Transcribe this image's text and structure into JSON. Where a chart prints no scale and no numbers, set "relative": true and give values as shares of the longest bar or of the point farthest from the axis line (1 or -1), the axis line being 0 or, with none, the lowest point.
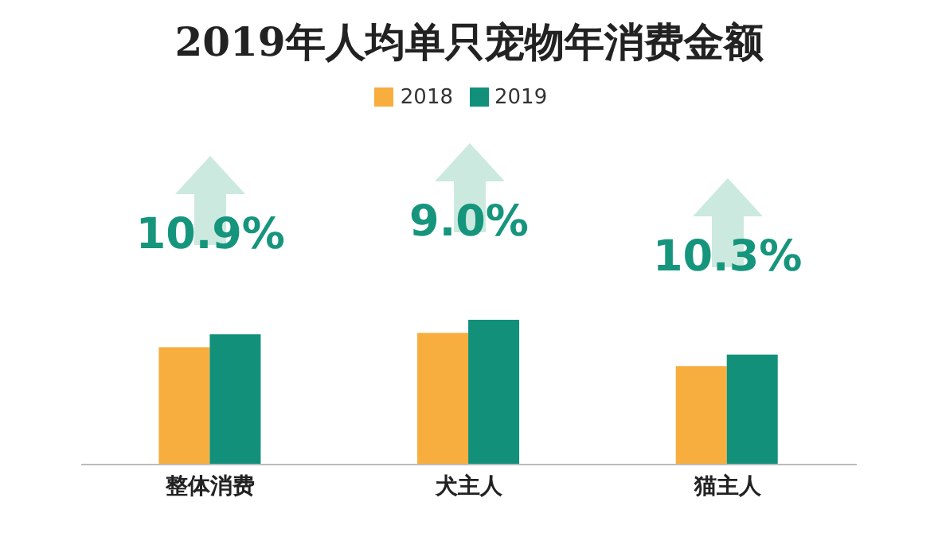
{
  "chart_data": {
    "type": "bar",
    "title": "2019年人均单只宠物年消费金额",
    "categories": [
      "整体消费",
      "犬主人",
      "猫主人"
    ],
    "relative": true,
    "legend": "top",
    "series": [
      {
        "name": "2018",
        "color": "#f7ae3e",
        "values": [
          0.81,
          0.91,
          0.68
        ]
      },
      {
        "name": "2019",
        "color": "#12907a",
        "values": [
          0.9,
          1,
          0.76
        ]
      }
    ],
    "annotations": [
      "10.9%",
      "9.0%",
      "10.3%"
    ]
  }
}
